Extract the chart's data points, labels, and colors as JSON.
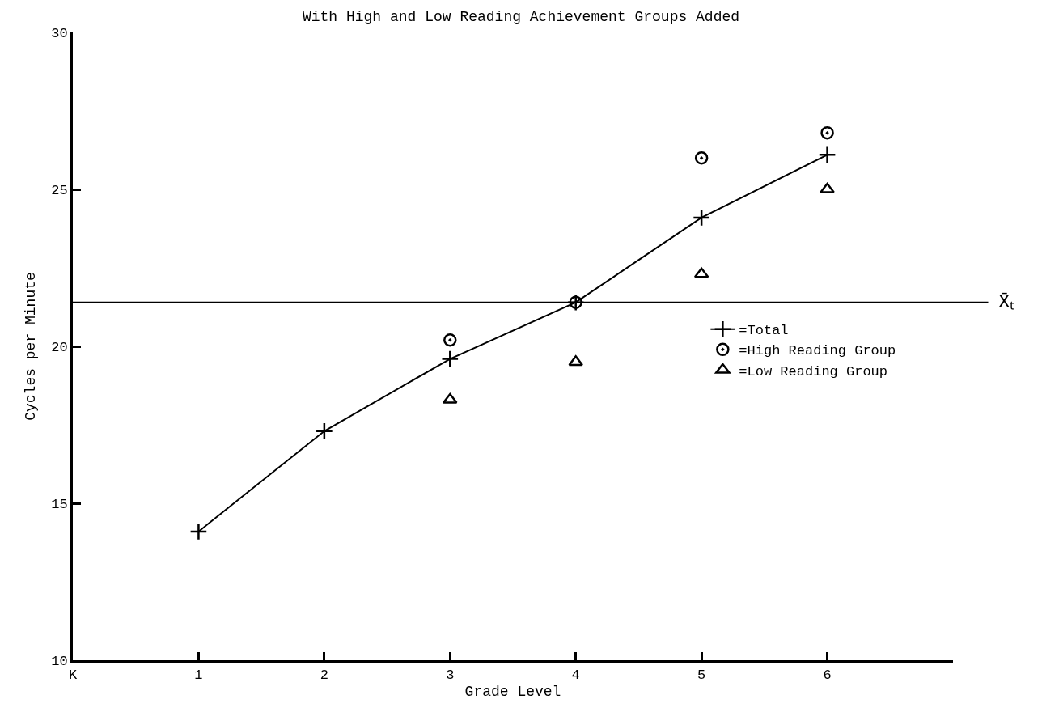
{
  "chart_data": {
    "type": "line",
    "title": "With High and Low Reading Achievement Groups Added",
    "xlabel": "Grade Level",
    "ylabel": "Cycles per Minute",
    "x": [
      1,
      2,
      3,
      4,
      5,
      6
    ],
    "series": [
      {
        "name": "=Total",
        "color": "#000000",
        "marker": "cross",
        "values": [
          14.1,
          17.3,
          19.6,
          21.4,
          24.1,
          26.1
        ]
      },
      {
        "name": "=High Reading Group",
        "color": "#000000",
        "type": "scatter",
        "marker": "circle",
        "values": [
          null,
          null,
          20.2,
          21.4,
          26.0,
          26.8
        ]
      },
      {
        "name": "=Low Reading Group",
        "color": "#000000",
        "type": "scatter",
        "marker": "triangle",
        "values": [
          null,
          null,
          18.3,
          19.5,
          22.3,
          25.0
        ]
      }
    ],
    "xlim": [
      0,
      7
    ],
    "xticks": [
      {
        "value": 0,
        "label": "K"
      },
      1,
      2,
      3,
      4,
      5,
      6
    ],
    "ylim": [
      10,
      30
    ],
    "yticks": [
      10,
      15,
      20,
      25,
      30
    ],
    "ref_lines": [
      {
        "axis": "y",
        "value": 21.4,
        "label": "X̄ₜ",
        "color": "#000000",
        "line_style": "solid"
      }
    ],
    "legend": "right",
    "line_style": "solid"
  }
}
